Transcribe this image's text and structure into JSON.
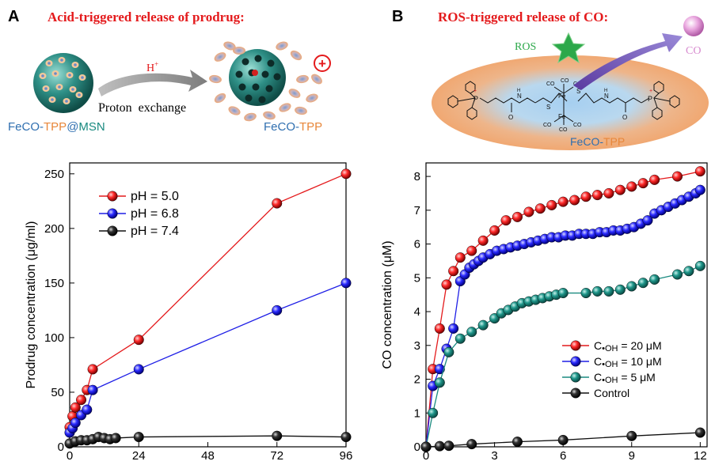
{
  "colors": {
    "red": "#e41a1c",
    "blue": "#1f1fe6",
    "black": "#111111",
    "teal": "#1a8a80",
    "orange": "#e8a46a",
    "lightblue": "#9ec8ec",
    "green": "#2ca84a",
    "pink": "#e58ad3",
    "mauve": "#6a4aa8"
  },
  "panel_a": {
    "letter": "A",
    "title": "Acid-triggered release of prodrug:",
    "h_label": "H",
    "h_sup": "+",
    "proton_label": "Proton  exchange",
    "plus_symbol": "+",
    "left_caption": {
      "p1": "FeCO-",
      "p2": "TPP",
      "p3": "@",
      "p4": "MSN"
    },
    "right_caption": {
      "p1": "FeCO-",
      "p2": "TPP"
    }
  },
  "panel_b": {
    "letter": "B",
    "title": "ROS-triggered release of CO:",
    "ros_label": "ROS",
    "co_label": "CO",
    "caption": {
      "p1": "FeCO-",
      "p2": "TPP"
    },
    "molecule": {
      "p": "P",
      "fe": "Fe",
      "co": "CO",
      "s": "S",
      "n": "N",
      "h": "H",
      "o": "O",
      "plus": "+"
    }
  },
  "chart_data": [
    {
      "id": "chart-a",
      "type": "line",
      "ylabel": "Prodrug concentration (μg/ml)",
      "xlabel": "",
      "xlim": [
        0,
        96
      ],
      "ylim": [
        0,
        260
      ],
      "xticks": [
        0,
        24,
        48,
        72,
        96
      ],
      "yticks": [
        0,
        50,
        100,
        150,
        200,
        250
      ],
      "legend_position": "top-left",
      "series": [
        {
          "name": "pH = 5.0",
          "color_key": "red",
          "x": [
            0,
            1,
            2,
            4,
            6,
            8,
            24,
            72,
            96
          ],
          "y": [
            18,
            28,
            36,
            43,
            52,
            71,
            98,
            223,
            250
          ]
        },
        {
          "name": "pH = 6.8",
          "color_key": "blue",
          "x": [
            0,
            1,
            2,
            4,
            6,
            8,
            24,
            72,
            96
          ],
          "y": [
            13,
            17,
            22,
            29,
            34,
            52,
            71,
            125,
            150
          ]
        },
        {
          "name": "pH = 7.4",
          "color_key": "black",
          "x": [
            0,
            2,
            4,
            6,
            8,
            10,
            12,
            14,
            16,
            24,
            72,
            96
          ],
          "y": [
            3,
            5,
            6,
            6,
            7,
            9,
            8,
            7,
            8,
            9,
            10,
            9
          ]
        }
      ]
    },
    {
      "id": "chart-b",
      "type": "line",
      "ylabel": "CO concentration (μM)",
      "xlabel": "",
      "xlim": [
        0,
        12.3
      ],
      "ylim": [
        0,
        8.4
      ],
      "xticks": [
        0,
        3,
        6,
        9,
        12
      ],
      "yticks": [
        0,
        1,
        2,
        3,
        4,
        5,
        6,
        7,
        8
      ],
      "legend_position": "bottom-right",
      "series": [
        {
          "name": "C•OH = 20 μM",
          "label_c": "C",
          "label_sub": "•OH",
          "label_val": " = 20 μM",
          "color_key": "red",
          "x": [
            0,
            0.3,
            0.6,
            0.9,
            1.2,
            1.5,
            2.0,
            2.5,
            3.0,
            3.5,
            4.0,
            4.5,
            5.0,
            5.5,
            6.0,
            6.5,
            7.0,
            7.5,
            8.0,
            8.5,
            9.0,
            9.5,
            10.0,
            11.0,
            12.0
          ],
          "y": [
            0,
            2.3,
            3.5,
            4.8,
            5.2,
            5.6,
            5.8,
            6.1,
            6.4,
            6.7,
            6.8,
            6.95,
            7.05,
            7.15,
            7.25,
            7.3,
            7.4,
            7.45,
            7.5,
            7.6,
            7.7,
            7.8,
            7.9,
            8.0,
            8.15
          ]
        },
        {
          "name": "C•OH = 10 μM",
          "label_c": "C",
          "label_sub": "•OH",
          "label_val": " = 10 μM",
          "color_key": "blue",
          "x": [
            0,
            0.3,
            0.6,
            0.9,
            1.2,
            1.5,
            1.7,
            1.9,
            2.1,
            2.3,
            2.5,
            2.8,
            3.1,
            3.4,
            3.7,
            4.0,
            4.3,
            4.6,
            4.9,
            5.2,
            5.5,
            5.8,
            6.1,
            6.4,
            6.7,
            7.0,
            7.3,
            7.6,
            7.9,
            8.2,
            8.5,
            8.8,
            9.1,
            9.4,
            9.7,
            10.0,
            10.3,
            10.6,
            10.9,
            11.2,
            11.5,
            11.8,
            12.0
          ],
          "y": [
            0,
            1.8,
            2.3,
            2.9,
            3.5,
            4.9,
            5.1,
            5.3,
            5.4,
            5.5,
            5.6,
            5.7,
            5.8,
            5.85,
            5.9,
            5.95,
            6.0,
            6.05,
            6.1,
            6.15,
            6.2,
            6.2,
            6.25,
            6.25,
            6.3,
            6.3,
            6.3,
            6.35,
            6.35,
            6.4,
            6.4,
            6.45,
            6.5,
            6.6,
            6.7,
            6.9,
            7.0,
            7.1,
            7.2,
            7.3,
            7.4,
            7.5,
            7.6
          ]
        },
        {
          "name": "C•OH = 5 μM",
          "label_c": "C",
          "label_sub": "•OH",
          "label_val": " = 5 μM",
          "color_key": "teal",
          "x": [
            0,
            0.3,
            0.6,
            1.0,
            1.5,
            2.0,
            2.5,
            3.0,
            3.3,
            3.6,
            3.9,
            4.2,
            4.5,
            4.8,
            5.1,
            5.4,
            5.7,
            6.0,
            7.0,
            7.5,
            8.0,
            8.5,
            9.0,
            9.5,
            10.0,
            11.0,
            11.5,
            12.0
          ],
          "y": [
            0,
            1.0,
            1.9,
            2.8,
            3.2,
            3.4,
            3.6,
            3.8,
            3.95,
            4.05,
            4.15,
            4.25,
            4.3,
            4.35,
            4.4,
            4.45,
            4.5,
            4.55,
            4.55,
            4.6,
            4.6,
            4.65,
            4.75,
            4.85,
            4.95,
            5.1,
            5.2,
            5.35
          ]
        },
        {
          "name": "Control",
          "label_c": "Control",
          "label_sub": "",
          "label_val": "",
          "color_key": "black",
          "x": [
            0,
            0.6,
            1.0,
            2.0,
            4.0,
            6.0,
            9.0,
            12.0
          ],
          "y": [
            0,
            0.02,
            0.03,
            0.08,
            0.15,
            0.2,
            0.32,
            0.42
          ]
        }
      ]
    }
  ]
}
